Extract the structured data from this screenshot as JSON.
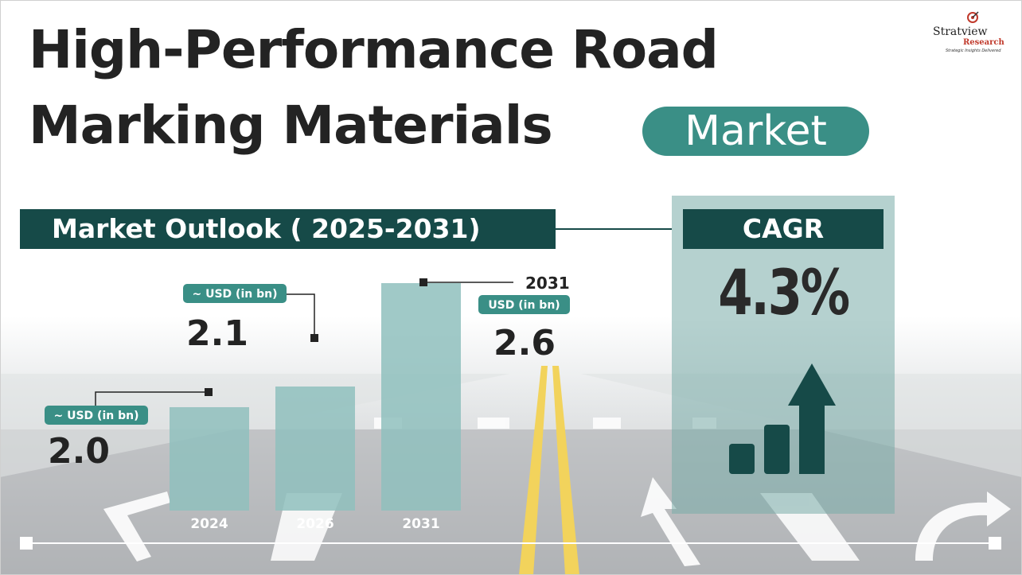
{
  "title": {
    "line1": "High-Performance Road",
    "line2": "Marking Materials",
    "highlight": "Market"
  },
  "logo": {
    "name": "Stratview",
    "sub": "Research",
    "tagline": "Strategic Insights Delivered",
    "registered": "®"
  },
  "outlook": {
    "label": "Market Outlook ( 2025-2031)"
  },
  "cagr": {
    "label": "CAGR",
    "value": "4.3%"
  },
  "colors": {
    "dark_teal": "#164a48",
    "accent_teal": "#3a8f86",
    "bar_fill": "#8fc0bd",
    "text_dark": "#232323"
  },
  "chart_data": {
    "type": "bar",
    "categories": [
      "2024",
      "2026",
      "2031"
    ],
    "values": [
      2.0,
      2.1,
      2.6
    ],
    "unit_labels": [
      "~ USD (in bn)",
      "~ USD (in bn)",
      "USD (in bn)"
    ],
    "value_labels": [
      "2.0",
      "2.1",
      "2.6"
    ],
    "callout_year": "2031",
    "title": "Market Outlook ( 2025-2031)",
    "xlabel": "",
    "ylabel": ""
  }
}
